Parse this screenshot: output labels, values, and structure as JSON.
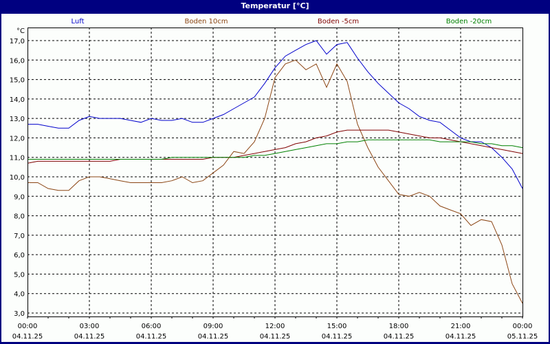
{
  "window": {
    "title": "Temperatur [°C]"
  },
  "chart_data": {
    "type": "line",
    "title": "Temperatur [°C]",
    "ylabel": "°C",
    "xlabel": "",
    "ylim": [
      3.0,
      17.0
    ],
    "y_ticks": [
      "17,0",
      "16,0",
      "15,0",
      "14,0",
      "13,0",
      "12,0",
      "11,0",
      "10,0",
      "9,0",
      "8,0",
      "7,0",
      "6,0",
      "5,0",
      "4,0",
      "3,0"
    ],
    "x_ticks": [
      {
        "time": "00:00",
        "date": "04.11.25"
      },
      {
        "time": "03:00",
        "date": "04.11.25"
      },
      {
        "time": "06:00",
        "date": "04.11.25"
      },
      {
        "time": "09:00",
        "date": "04.11.25"
      },
      {
        "time": "12:00",
        "date": "04.11.25"
      },
      {
        "time": "15:00",
        "date": "04.11.25"
      },
      {
        "time": "18:00",
        "date": "04.11.25"
      },
      {
        "time": "21:00",
        "date": "04.11.25"
      },
      {
        "time": "00:00",
        "date": "05.11.25"
      }
    ],
    "grid": true,
    "legend_position": "top",
    "x_hours": [
      0,
      0.5,
      1,
      1.5,
      2,
      2.5,
      3,
      3.5,
      4,
      4.5,
      5,
      5.5,
      6,
      6.5,
      7,
      7.5,
      8,
      8.5,
      9,
      9.5,
      10,
      10.5,
      11,
      11.5,
      12,
      12.5,
      13,
      13.5,
      14,
      14.5,
      15,
      15.5,
      16,
      16.5,
      17,
      17.5,
      18,
      18.5,
      19,
      19.5,
      20,
      20.5,
      21,
      21.5,
      22,
      22.5,
      23,
      23.5,
      24
    ],
    "series": [
      {
        "name": "Luft",
        "color": "#0000cc",
        "values": [
          12.7,
          12.7,
          12.6,
          12.5,
          12.5,
          12.9,
          13.1,
          13.0,
          13.0,
          13.0,
          12.9,
          12.8,
          13.0,
          12.9,
          12.9,
          13.0,
          12.8,
          12.8,
          13.0,
          13.2,
          13.5,
          13.8,
          14.1,
          14.8,
          15.6,
          16.2,
          16.5,
          16.8,
          17.0,
          16.3,
          16.8,
          16.9,
          16.1,
          15.4,
          14.8,
          14.3,
          13.8,
          13.5,
          13.1,
          12.9,
          12.8,
          12.4,
          12.0,
          11.8,
          11.8,
          11.5,
          11.0,
          10.4,
          9.4
        ]
      },
      {
        "name": "Boden 10cm",
        "color": "#8b4513",
        "values": [
          9.7,
          9.7,
          9.4,
          9.3,
          9.3,
          9.8,
          10.0,
          10.0,
          9.9,
          9.8,
          9.7,
          9.7,
          9.7,
          9.7,
          9.8,
          10.0,
          9.7,
          9.8,
          10.2,
          10.6,
          11.3,
          11.2,
          11.8,
          13.0,
          15.1,
          15.8,
          16.0,
          15.5,
          15.8,
          14.6,
          15.8,
          14.9,
          12.7,
          11.5,
          10.5,
          9.8,
          9.1,
          9.0,
          9.2,
          9.0,
          8.5,
          8.3,
          8.1,
          7.5,
          7.8,
          7.7,
          6.5,
          4.5,
          3.5
        ]
      },
      {
        "name": "Boden -5cm",
        "color": "#800000",
        "values": [
          10.7,
          10.8,
          10.8,
          10.8,
          10.8,
          10.8,
          10.8,
          10.8,
          10.8,
          10.9,
          10.9,
          10.9,
          10.9,
          10.9,
          10.9,
          10.9,
          10.9,
          10.9,
          11.0,
          11.0,
          11.0,
          11.1,
          11.2,
          11.3,
          11.4,
          11.5,
          11.7,
          11.8,
          12.0,
          12.1,
          12.3,
          12.4,
          12.4,
          12.4,
          12.4,
          12.4,
          12.3,
          12.2,
          12.1,
          12.0,
          12.0,
          11.9,
          11.8,
          11.7,
          11.6,
          11.5,
          11.4,
          11.3,
          11.2
        ]
      },
      {
        "name": "Boden -20cm",
        "color": "#008000",
        "values": [
          10.9,
          10.9,
          10.9,
          10.9,
          10.9,
          10.9,
          10.9,
          10.9,
          10.9,
          10.9,
          10.9,
          10.9,
          10.9,
          10.9,
          11.0,
          11.0,
          11.0,
          11.0,
          11.0,
          11.0,
          11.0,
          11.0,
          11.1,
          11.1,
          11.2,
          11.3,
          11.4,
          11.5,
          11.6,
          11.7,
          11.7,
          11.8,
          11.8,
          11.9,
          11.9,
          11.9,
          11.9,
          11.9,
          11.9,
          11.9,
          11.8,
          11.8,
          11.8,
          11.8,
          11.7,
          11.7,
          11.6,
          11.6,
          11.5
        ]
      }
    ]
  }
}
